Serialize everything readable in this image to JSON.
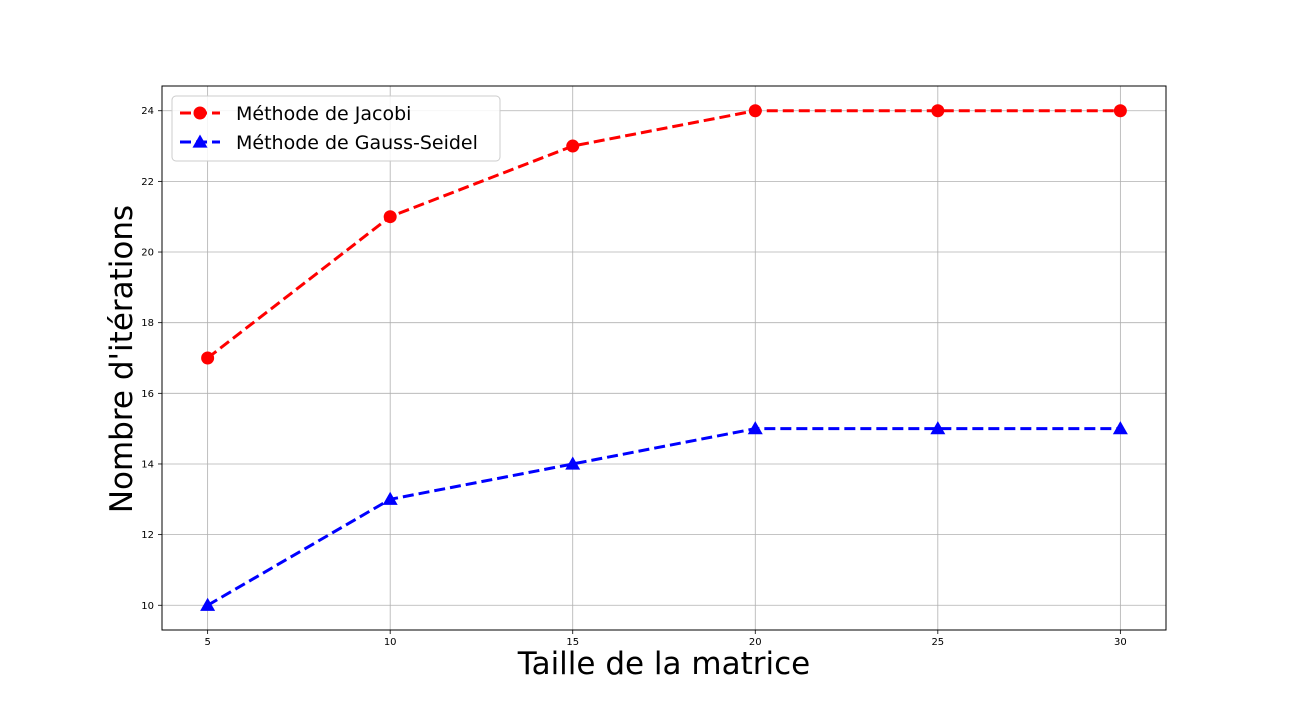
{
  "chart_data": {
    "type": "line",
    "x": [
      5,
      10,
      15,
      20,
      25,
      30
    ],
    "series": [
      {
        "name": "Méthode de Jacobi",
        "values": [
          17,
          21,
          23,
          24,
          24,
          24
        ],
        "color": "#ff0000",
        "marker": "circle",
        "line_style": "dashed"
      },
      {
        "name": "Méthode de Gauss-Seidel",
        "values": [
          10,
          13,
          14,
          15,
          15,
          15
        ],
        "color": "#0000ff",
        "marker": "triangle",
        "line_style": "dashed"
      }
    ],
    "title": "",
    "xlabel": "Taille de la matrice",
    "ylabel": "Nombre d'itérations",
    "xlim": [
      3.75,
      31.25
    ],
    "ylim": [
      9.3,
      24.7
    ],
    "xticks": [
      "5",
      "10",
      "15",
      "20",
      "25",
      "30"
    ],
    "yticks": [
      "10",
      "12",
      "14",
      "16",
      "18",
      "20",
      "22",
      "24"
    ],
    "grid": true,
    "legend_position": "top-left"
  }
}
